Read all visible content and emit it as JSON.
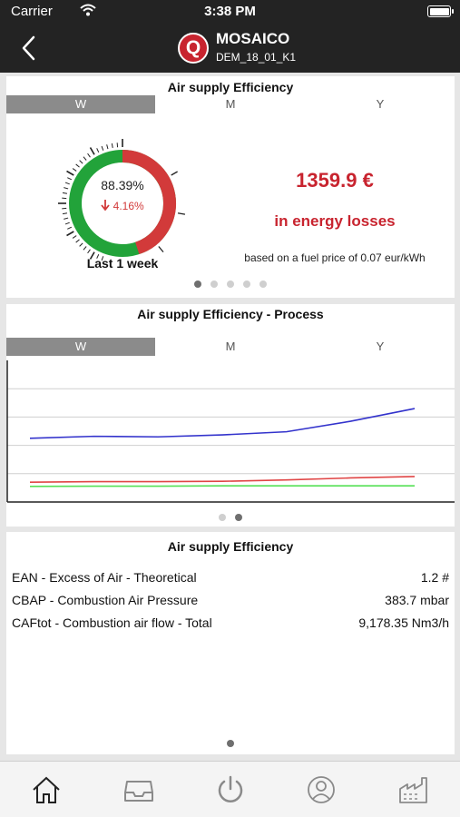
{
  "status": {
    "carrier": "Carrier",
    "time": "3:38 PM"
  },
  "nav": {
    "title": "MOSAICO",
    "subtitle": "DEM_18_01_K1",
    "logo_letter": "Q"
  },
  "efficiency_card": {
    "title": "Air supply Efficiency",
    "tabs": [
      "W",
      "M",
      "Y"
    ],
    "active_tab": "W",
    "gauge": {
      "value": "88.39%",
      "delta": "4.16%",
      "caption": "Last 1 week",
      "fraction": 0.8839
    },
    "loss_amount": "1359.9 €",
    "loss_label": "in energy losses",
    "fuel_note": "based on a fuel price of 0.07 eur/kWh",
    "page_count": 5,
    "page_active": 0
  },
  "process_card": {
    "title": "Air supply Efficiency - Process",
    "tabs": [
      "W",
      "M",
      "Y"
    ],
    "active_tab": "W",
    "page_count": 2,
    "page_active": 1
  },
  "chart_data": {
    "type": "line",
    "x": [
      1,
      2,
      3,
      4,
      5,
      6,
      7
    ],
    "ylim": [
      0,
      5
    ],
    "grid": true,
    "series": [
      {
        "color": "#3333cc",
        "values": [
          2.25,
          2.32,
          2.3,
          2.37,
          2.48,
          2.85,
          3.3
        ]
      },
      {
        "color": "#e04545",
        "values": [
          0.7,
          0.72,
          0.72,
          0.73,
          0.78,
          0.85,
          0.9
        ]
      },
      {
        "color": "#55e055",
        "values": [
          0.55,
          0.56,
          0.56,
          0.57,
          0.57,
          0.57,
          0.57
        ]
      }
    ]
  },
  "params_card": {
    "title": "Air supply Efficiency",
    "rows": [
      {
        "name": "EAN - Excess of Air - Theoretical",
        "value": "1.2 #"
      },
      {
        "name": "CBAP - Combustion Air Pressure",
        "value": "383.7 mbar"
      },
      {
        "name": "CAFtot - Combustion air flow - Total",
        "value": "9,178.35 Nm3/h"
      }
    ],
    "page_count": 1,
    "page_active": 0
  },
  "tabbar": {
    "items": [
      "home-icon",
      "inbox-icon",
      "power-icon",
      "user-icon",
      "factory-icon"
    ],
    "active": 0
  },
  "colors": {
    "brand": "#c8242f",
    "positive": "#22a33a",
    "negative": "#d23a3a"
  }
}
